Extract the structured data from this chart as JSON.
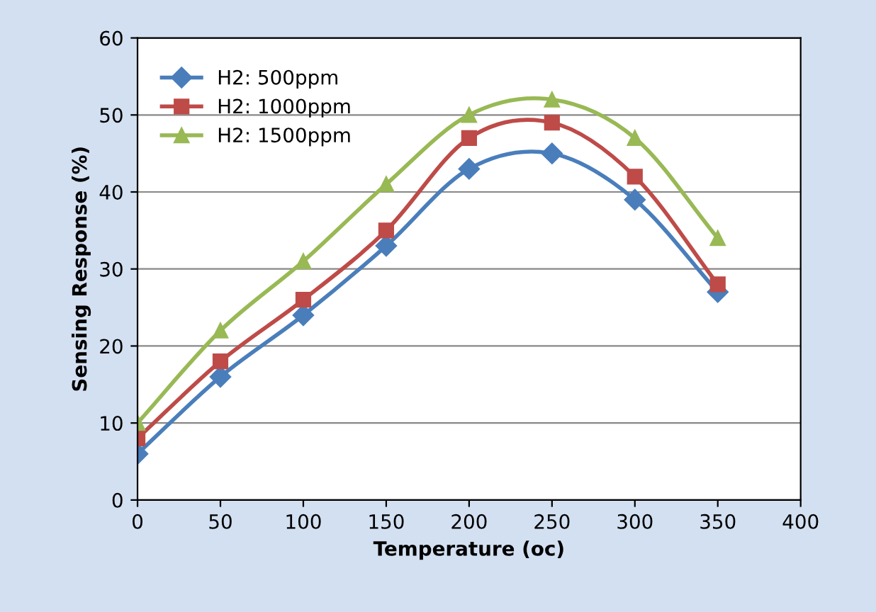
{
  "chart_data": {
    "type": "line",
    "xlabel": "Temperature (oc)",
    "ylabel": "Sensing Response (%)",
    "x": [
      0,
      50,
      100,
      150,
      200,
      250,
      300,
      350
    ],
    "series": [
      {
        "name": "H2: 500ppm",
        "color": "#4a7ebb",
        "marker": "diamond",
        "values": [
          6,
          16,
          24,
          33,
          43,
          45,
          39,
          27
        ]
      },
      {
        "name": "H2: 1000ppm",
        "color": "#be4b48",
        "marker": "square",
        "values": [
          8,
          18,
          26,
          35,
          47,
          49,
          42,
          28
        ]
      },
      {
        "name": "H2: 1500ppm",
        "color": "#98b954",
        "marker": "triangle",
        "values": [
          10,
          22,
          31,
          41,
          50,
          52,
          47,
          34
        ]
      }
    ],
    "xlim": [
      0,
      400
    ],
    "xticks": [
      0,
      50,
      100,
      150,
      200,
      250,
      300,
      350,
      400
    ],
    "ylim": [
      0,
      60
    ],
    "yticks": [
      0,
      10,
      20,
      30,
      40,
      50,
      60
    ],
    "grid": "y",
    "legend": "top left",
    "line_style": "solid"
  }
}
